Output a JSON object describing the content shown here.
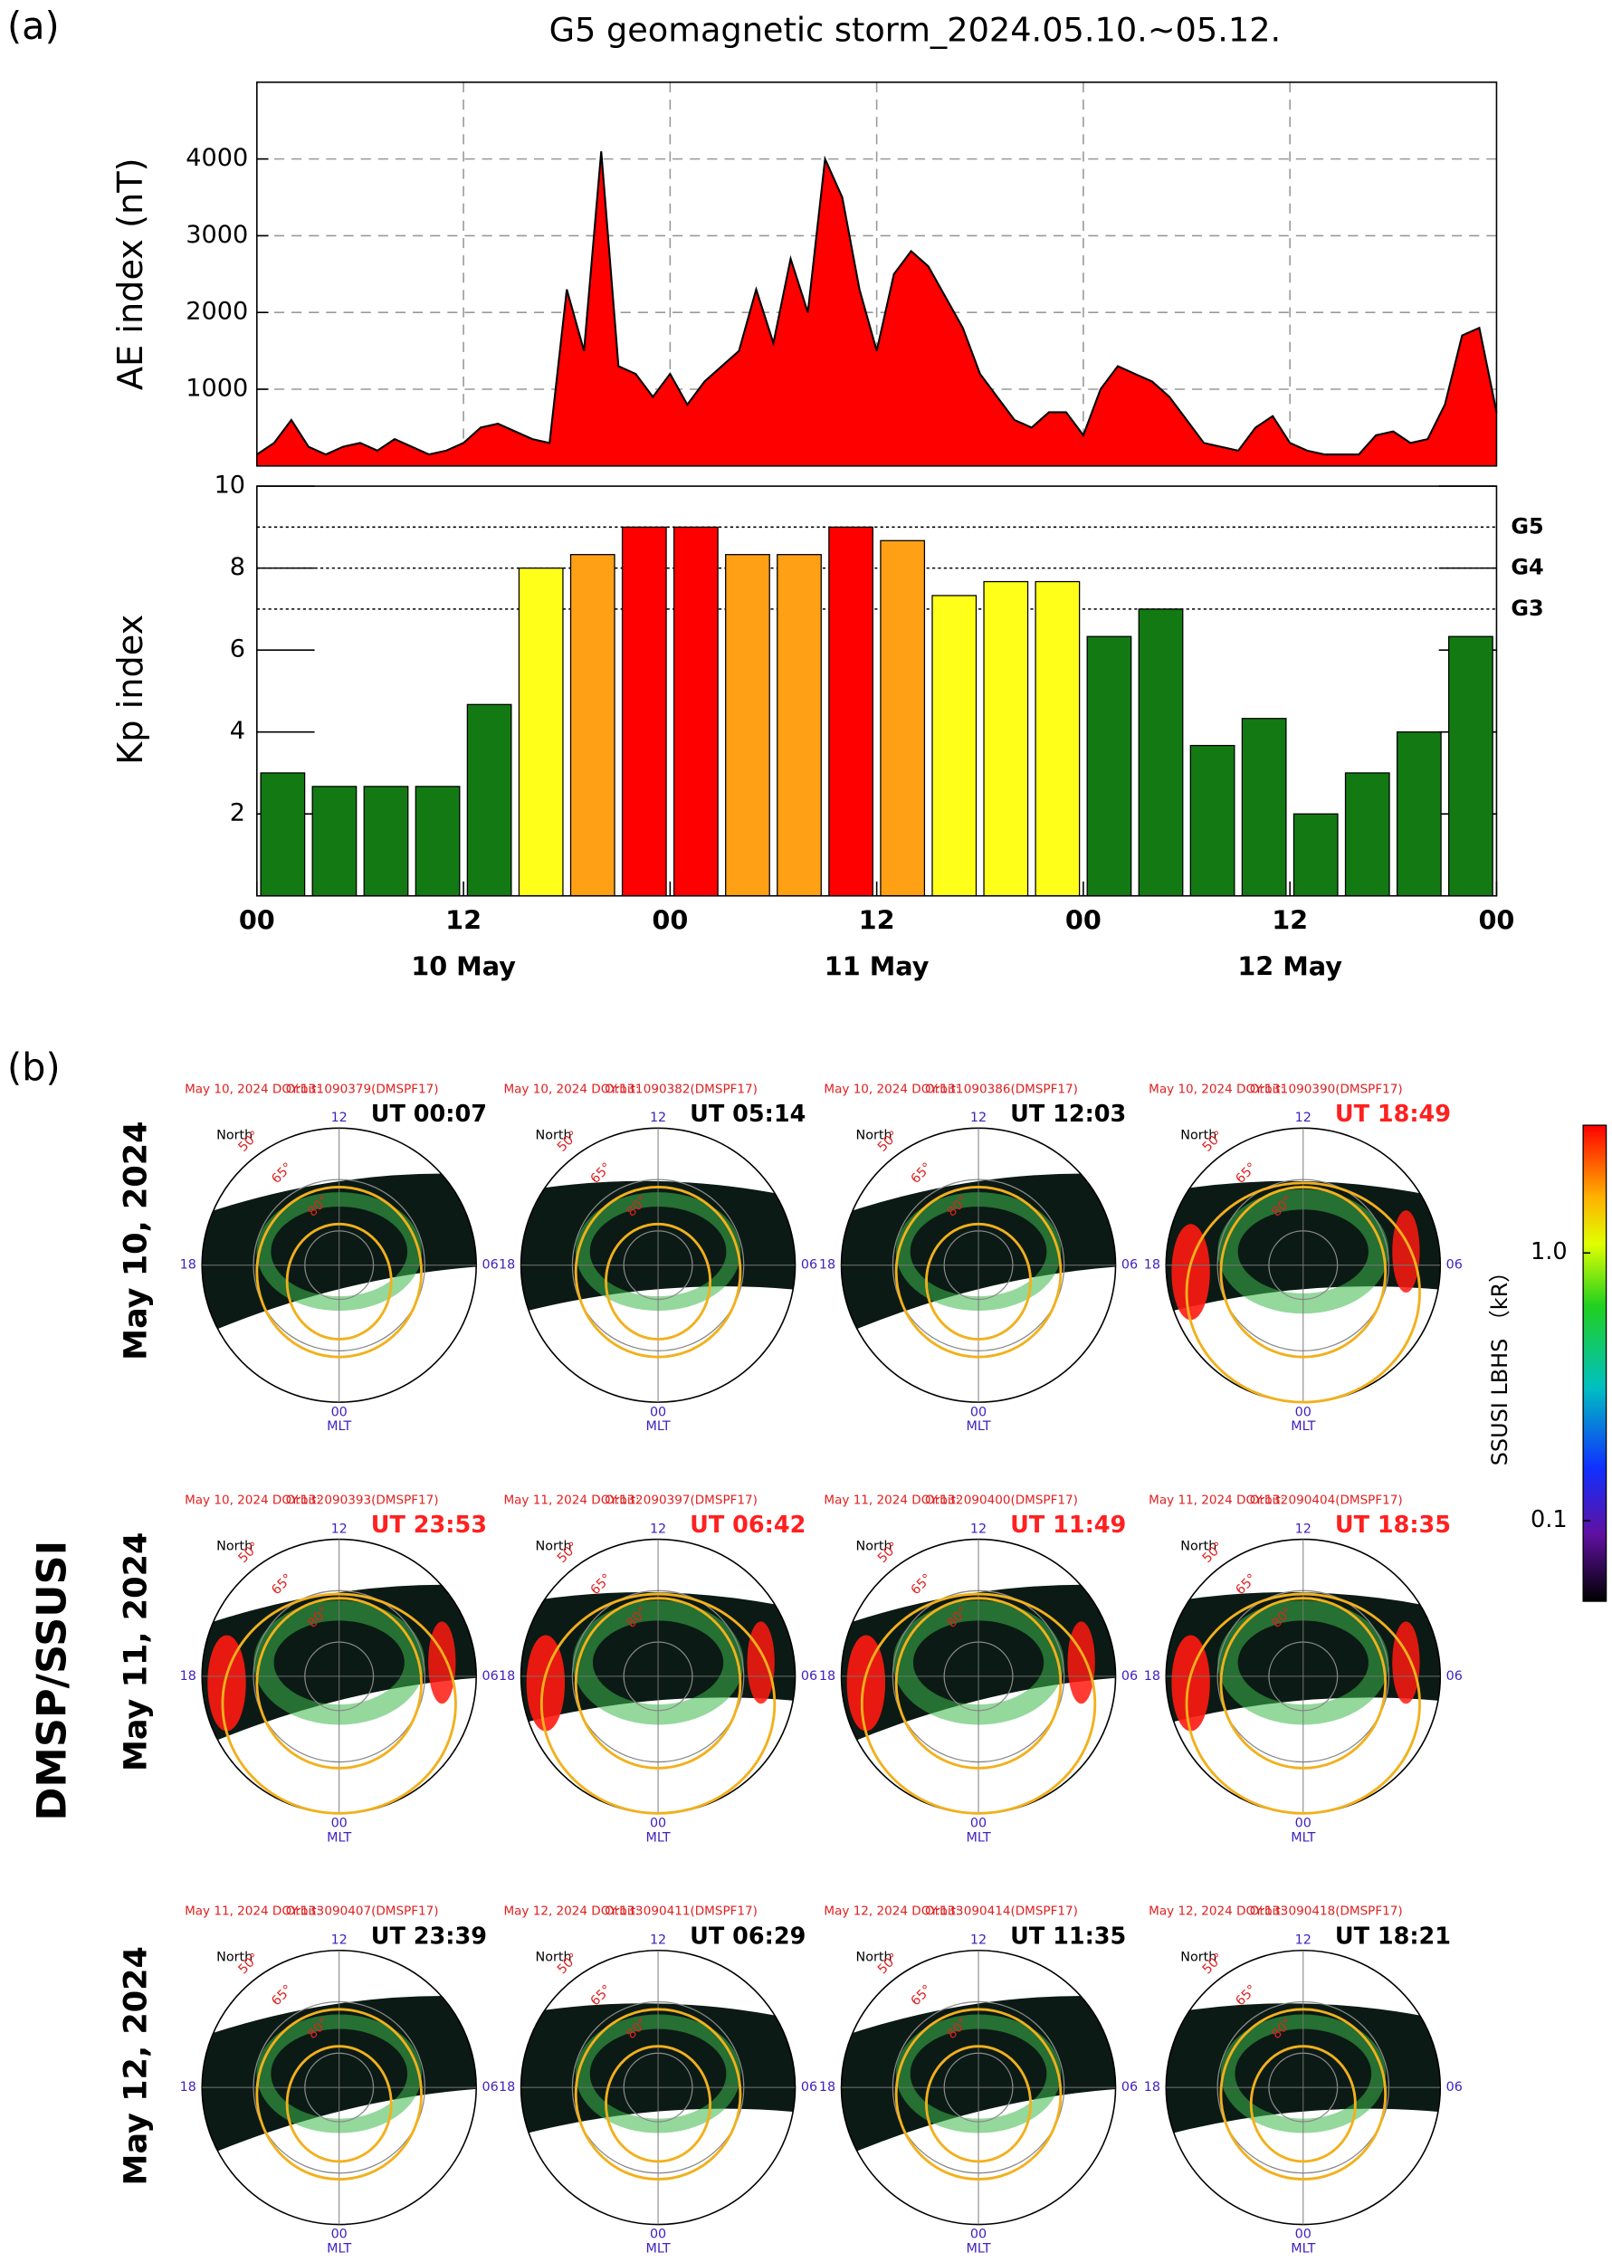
{
  "panel_a_label": "(a)",
  "chart_data": [
    {
      "type": "area",
      "title": "G5 geomagnetic storm_2024.05.10.~05.12.",
      "ylabel": "AE index (nT)",
      "x": [
        0,
        1,
        2,
        3,
        4,
        5,
        6,
        7,
        8,
        9,
        10,
        11,
        12,
        13,
        14,
        15,
        16,
        17,
        18,
        19,
        20,
        21,
        22,
        23,
        24,
        25,
        26,
        27,
        28,
        29,
        30,
        31,
        32,
        33,
        34,
        35,
        36,
        37,
        38,
        39,
        40,
        41,
        42,
        43,
        44,
        45,
        46,
        47,
        48,
        49,
        50,
        51,
        52,
        53,
        54,
        55,
        56,
        57,
        58,
        59,
        60,
        61,
        62,
        63,
        64,
        65,
        66,
        67,
        68,
        69,
        70,
        71,
        72
      ],
      "values": [
        150,
        300,
        600,
        250,
        150,
        250,
        300,
        200,
        350,
        250,
        150,
        200,
        300,
        500,
        550,
        450,
        350,
        300,
        2300,
        1500,
        4100,
        1300,
        1200,
        900,
        1200,
        800,
        1100,
        1300,
        1500,
        2300,
        1600,
        2700,
        2000,
        4000,
        3500,
        2300,
        1500,
        2500,
        2800,
        2600,
        2200,
        1800,
        1200,
        900,
        600,
        500,
        700,
        700,
        400,
        1000,
        1300,
        1200,
        1100,
        900,
        600,
        300,
        250,
        200,
        500,
        650,
        300,
        200,
        150,
        150,
        150,
        400,
        450,
        300,
        350,
        800,
        1700,
        1800,
        700
      ],
      "color": "#ff0000",
      "line_color": "#000000",
      "xlim": [
        0,
        72
      ],
      "ylim": [
        0,
        5000
      ],
      "yticks": [
        1000,
        2000,
        3000,
        4000
      ],
      "grid": true
    },
    {
      "type": "bar",
      "ylabel": "Kp index",
      "x": [
        1.5,
        4.5,
        7.5,
        10.5,
        13.5,
        16.5,
        19.5,
        22.5,
        25.5,
        28.5,
        31.5,
        34.5,
        37.5,
        40.5,
        43.5,
        46.5,
        49.5,
        52.5,
        55.5,
        58.5,
        61.5,
        64.5,
        67.5,
        70.5
      ],
      "values": [
        3,
        2.67,
        2.67,
        2.67,
        4.67,
        8,
        8.33,
        9,
        9,
        8.33,
        8.33,
        9,
        8.67,
        7.33,
        7.67,
        7.67,
        6.33,
        7,
        3.67,
        4.33,
        2,
        3,
        4,
        6.33
      ],
      "colors": [
        "#137a13",
        "#137a13",
        "#137a13",
        "#137a13",
        "#137a13",
        "#ffff1a",
        "#ffa015",
        "#ff0000",
        "#ff0000",
        "#ffa015",
        "#ffa015",
        "#ff0000",
        "#ffa015",
        "#ffff1a",
        "#ffff1a",
        "#ffff1a",
        "#137a13",
        "#137a13",
        "#137a13",
        "#137a13",
        "#137a13",
        "#137a13",
        "#137a13",
        "#137a13"
      ],
      "xlim": [
        0,
        72
      ],
      "ylim": [
        0,
        10
      ],
      "yticks": [
        2,
        4,
        6,
        8,
        10
      ],
      "xticks": [
        {
          "value": 0,
          "label": "00"
        },
        {
          "value": 12,
          "label": "12"
        },
        {
          "value": 24,
          "label": "00"
        },
        {
          "value": 36,
          "label": "12"
        },
        {
          "value": 48,
          "label": "00"
        },
        {
          "value": 60,
          "label": "12"
        },
        {
          "value": 72,
          "label": "00"
        }
      ],
      "day_labels": [
        {
          "value": 12,
          "label": "10 May"
        },
        {
          "value": 36,
          "label": "11 May"
        },
        {
          "value": 60,
          "label": "12 May"
        }
      ],
      "thresholds": [
        {
          "value": 9,
          "label": "G5"
        },
        {
          "value": 8,
          "label": "G4"
        },
        {
          "value": 7,
          "label": "G3"
        }
      ]
    }
  ],
  "panel_b": {
    "panel_label": "(b)",
    "instrument": "DMSP/SSUSI",
    "polar_labels": {
      "north": "North",
      "mlt_12": "12",
      "mlt_18": "18",
      "mlt_06": "06",
      "mlt_00": "00",
      "mlt": "MLT",
      "lat": [
        "50°",
        "65°",
        "80°"
      ]
    },
    "rows": [
      {
        "label": "May 10, 2024",
        "plots": [
          {
            "date": "May 10, 2024 DOY:131",
            "orbit": "Orbit: 090379(DMSPF17)",
            "time": "UT 00:07",
            "time_color": "#000000"
          },
          {
            "date": "May 10, 2024 DOY:131",
            "orbit": "Orbit: 090382(DMSPF17)",
            "time": "UT 05:14",
            "time_color": "#000000"
          },
          {
            "date": "May 10, 2024 DOY:131",
            "orbit": "Orbit: 090386(DMSPF17)",
            "time": "UT 12:03",
            "time_color": "#000000"
          },
          {
            "date": "May 10, 2024 DOY:131",
            "orbit": "Orbit: 090390(DMSPF17)",
            "time": "UT 18:49",
            "time_color": "#ff2020"
          }
        ]
      },
      {
        "label": "May 11, 2024",
        "plots": [
          {
            "date": "May 10, 2024 DOY:132",
            "orbit": "Orbit: 090393(DMSPF17)",
            "time": "UT 23:53",
            "time_color": "#ff2020"
          },
          {
            "date": "May 11, 2024 DOY:132",
            "orbit": "Orbit: 090397(DMSPF17)",
            "time": "UT 06:42",
            "time_color": "#ff2020"
          },
          {
            "date": "May 11, 2024 DOY:132",
            "orbit": "Orbit: 090400(DMSPF17)",
            "time": "UT 11:49",
            "time_color": "#ff2020"
          },
          {
            "date": "May 11, 2024 DOY:132",
            "orbit": "Orbit: 090404(DMSPF17)",
            "time": "UT 18:35",
            "time_color": "#ff2020"
          }
        ]
      },
      {
        "label": "May 12, 2024",
        "plots": [
          {
            "date": "May 11, 2024 DOY:133",
            "orbit": "Orbit: 090407(DMSPF17)",
            "time": "UT 23:39",
            "time_color": "#000000"
          },
          {
            "date": "May 12, 2024 DOY:133",
            "orbit": "Orbit: 090411(DMSPF17)",
            "time": "UT 06:29",
            "time_color": "#000000"
          },
          {
            "date": "May 12, 2024 DOY:133",
            "orbit": "Orbit: 090414(DMSPF17)",
            "time": "UT 11:35",
            "time_color": "#000000"
          },
          {
            "date": "May 12, 2024 DOY:133",
            "orbit": "Orbit: 090418(DMSPF17)",
            "time": "UT 18:21",
            "time_color": "#000000"
          }
        ]
      }
    ],
    "colorbar": {
      "label": "SSUSI LBHS （kR）",
      "log": true,
      "ylim": [
        0.05,
        3
      ],
      "yticks": [
        0.1,
        {
          "value": 1,
          "label": "1.0"
        }
      ]
    }
  }
}
